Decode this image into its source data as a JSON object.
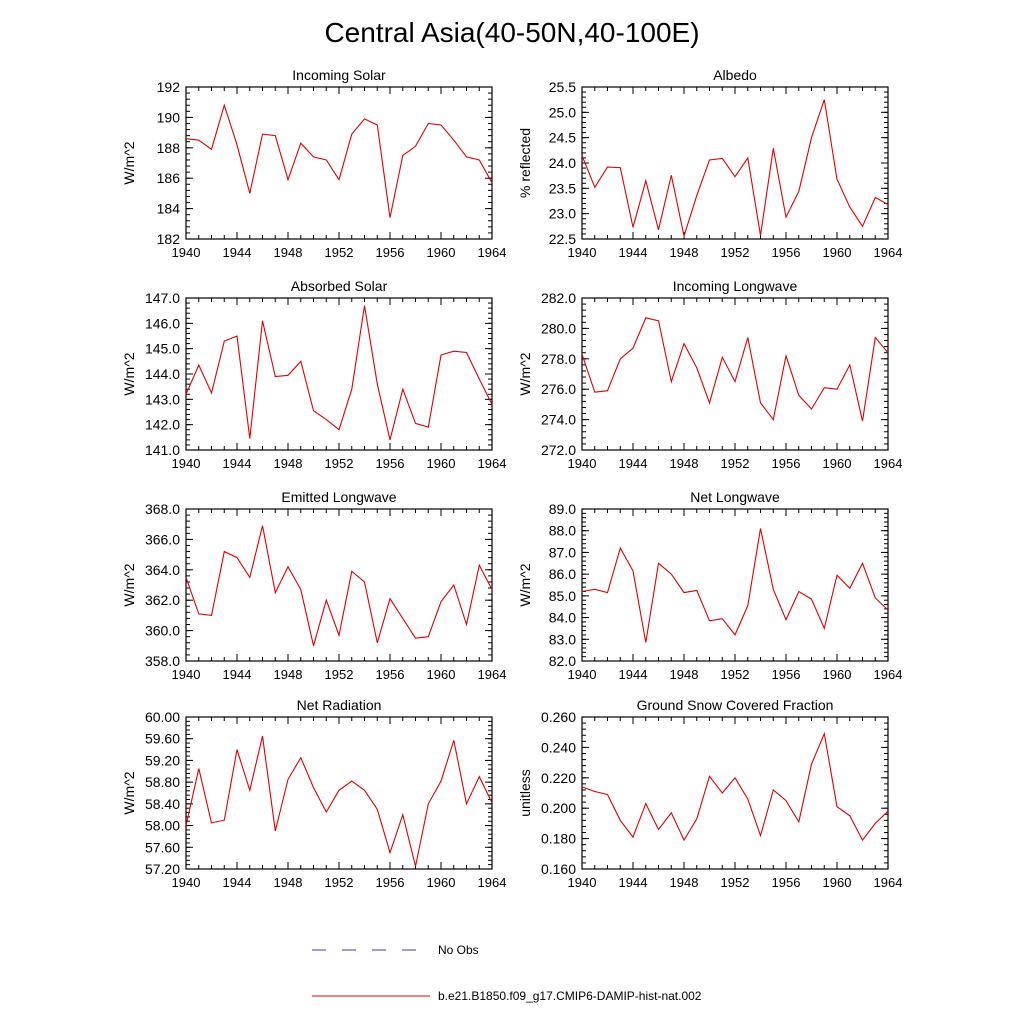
{
  "title": "Central Asia(40-50N,40-100E)",
  "legend": {
    "obs_label": "No Obs",
    "obs_color": "#3b3bb5",
    "model_label": "b.e21.B1850.f09_g17.CMIP6-DAMIP-hist-nat.002",
    "model_color": "#e00000"
  },
  "chart_data": [
    {
      "type": "line",
      "title": "Incoming Solar",
      "ylabel": "W/m^2",
      "x": [
        1940,
        1941,
        1942,
        1943,
        1944,
        1945,
        1946,
        1947,
        1948,
        1949,
        1950,
        1951,
        1952,
        1953,
        1954,
        1955,
        1956,
        1957,
        1958,
        1959,
        1960,
        1961,
        1962,
        1963,
        1964
      ],
      "xlim": [
        1940,
        1964
      ],
      "xticks": [
        "1940",
        "1944",
        "1948",
        "1952",
        "1956",
        "1960",
        "1964"
      ],
      "ylim": [
        182,
        192
      ],
      "yticks": [
        "182",
        "184",
        "186",
        "188",
        "190",
        "192"
      ],
      "series": [
        {
          "values": [
            188.6,
            188.5,
            187.9,
            190.8,
            188.2,
            185.0,
            188.9,
            188.8,
            185.9,
            188.3,
            187.4,
            187.2,
            185.9,
            188.9,
            189.9,
            189.5,
            183.4,
            187.5,
            188.1,
            189.6,
            189.5,
            188.5,
            187.4,
            187.2,
            185.7
          ]
        }
      ]
    },
    {
      "type": "line",
      "title": "Albedo",
      "ylabel": "% reflected",
      "x": [
        1940,
        1941,
        1942,
        1943,
        1944,
        1945,
        1946,
        1947,
        1948,
        1949,
        1950,
        1951,
        1952,
        1953,
        1954,
        1955,
        1956,
        1957,
        1958,
        1959,
        1960,
        1961,
        1962,
        1963,
        1964
      ],
      "xlim": [
        1940,
        1964
      ],
      "xticks": [
        "1940",
        "1944",
        "1948",
        "1952",
        "1956",
        "1960",
        "1964"
      ],
      "ylim": [
        22.5,
        25.5
      ],
      "yticks": [
        "22.5",
        "23.0",
        "23.5",
        "24.0",
        "24.5",
        "25.0",
        "25.5"
      ],
      "series": [
        {
          "values": [
            24.15,
            23.52,
            23.92,
            23.91,
            22.73,
            23.65,
            22.68,
            23.76,
            22.56,
            23.36,
            24.06,
            24.09,
            23.73,
            24.1,
            22.57,
            24.29,
            22.93,
            23.44,
            24.5,
            25.25,
            23.68,
            23.13,
            22.75,
            23.32,
            23.18
          ]
        }
      ]
    },
    {
      "type": "line",
      "title": "Absorbed Solar",
      "ylabel": "W/m^2",
      "x": [
        1940,
        1941,
        1942,
        1943,
        1944,
        1945,
        1946,
        1947,
        1948,
        1949,
        1950,
        1951,
        1952,
        1953,
        1954,
        1955,
        1956,
        1957,
        1958,
        1959,
        1960,
        1961,
        1962,
        1963,
        1964
      ],
      "xlim": [
        1940,
        1964
      ],
      "xticks": [
        "1940",
        "1944",
        "1948",
        "1952",
        "1956",
        "1960",
        "1964"
      ],
      "ylim": [
        141.0,
        147.0
      ],
      "yticks": [
        "141.0",
        "142.0",
        "143.0",
        "144.0",
        "145.0",
        "146.0",
        "147.0"
      ],
      "series": [
        {
          "values": [
            143.2,
            144.35,
            143.25,
            145.3,
            145.5,
            141.45,
            146.1,
            143.9,
            143.95,
            144.5,
            142.55,
            142.2,
            141.8,
            143.4,
            146.7,
            143.6,
            141.4,
            143.4,
            142.05,
            141.9,
            144.75,
            144.9,
            144.85,
            143.8,
            142.8
          ]
        }
      ]
    },
    {
      "type": "line",
      "title": "Incoming Longwave",
      "ylabel": "W/m^2",
      "x": [
        1940,
        1941,
        1942,
        1943,
        1944,
        1945,
        1946,
        1947,
        1948,
        1949,
        1950,
        1951,
        1952,
        1953,
        1954,
        1955,
        1956,
        1957,
        1958,
        1959,
        1960,
        1961,
        1962,
        1963,
        1964
      ],
      "xlim": [
        1940,
        1964
      ],
      "xticks": [
        "1940",
        "1944",
        "1948",
        "1952",
        "1956",
        "1960",
        "1964"
      ],
      "ylim": [
        272.0,
        282.0
      ],
      "yticks": [
        "272.0",
        "274.0",
        "276.0",
        "278.0",
        "280.0",
        "282.0"
      ],
      "series": [
        {
          "values": [
            278.3,
            275.8,
            275.9,
            278.0,
            278.7,
            280.7,
            280.5,
            276.5,
            279.0,
            277.4,
            275.1,
            278.1,
            276.5,
            279.4,
            275.1,
            274.0,
            278.2,
            275.6,
            274.7,
            276.1,
            276.0,
            277.6,
            273.9,
            279.4,
            278.4
          ]
        }
      ]
    },
    {
      "type": "line",
      "title": "Emitted Longwave",
      "ylabel": "W/m^2",
      "x": [
        1940,
        1941,
        1942,
        1943,
        1944,
        1945,
        1946,
        1947,
        1948,
        1949,
        1950,
        1951,
        1952,
        1953,
        1954,
        1955,
        1956,
        1957,
        1958,
        1959,
        1960,
        1961,
        1962,
        1963,
        1964
      ],
      "xlim": [
        1940,
        1964
      ],
      "xticks": [
        "1940",
        "1944",
        "1948",
        "1952",
        "1956",
        "1960",
        "1964"
      ],
      "ylim": [
        358.0,
        368.0
      ],
      "yticks": [
        "358.0",
        "360.0",
        "362.0",
        "364.0",
        "366.0",
        "368.0"
      ],
      "series": [
        {
          "values": [
            363.5,
            361.1,
            361.0,
            365.2,
            364.8,
            363.5,
            366.9,
            362.5,
            364.2,
            362.7,
            359.0,
            362.0,
            359.7,
            363.9,
            363.2,
            359.2,
            362.1,
            360.8,
            359.5,
            359.6,
            361.9,
            363.0,
            360.4,
            364.3,
            362.7
          ]
        }
      ]
    },
    {
      "type": "line",
      "title": "Net Longwave",
      "ylabel": "W/m^2",
      "x": [
        1940,
        1941,
        1942,
        1943,
        1944,
        1945,
        1946,
        1947,
        1948,
        1949,
        1950,
        1951,
        1952,
        1953,
        1954,
        1955,
        1956,
        1957,
        1958,
        1959,
        1960,
        1961,
        1962,
        1963,
        1964
      ],
      "xlim": [
        1940,
        1964
      ],
      "xticks": [
        "1940",
        "1944",
        "1948",
        "1952",
        "1956",
        "1960",
        "1964"
      ],
      "ylim": [
        82.0,
        89.0
      ],
      "yticks": [
        "82.0",
        "83.0",
        "84.0",
        "85.0",
        "86.0",
        "87.0",
        "88.0",
        "89.0"
      ],
      "series": [
        {
          "values": [
            85.2,
            85.3,
            85.15,
            87.2,
            86.15,
            82.85,
            86.5,
            86.0,
            85.15,
            85.25,
            83.85,
            83.95,
            83.2,
            84.55,
            88.1,
            85.3,
            83.9,
            85.2,
            84.85,
            83.5,
            85.95,
            85.35,
            86.5,
            84.9,
            84.35
          ]
        }
      ]
    },
    {
      "type": "line",
      "title": "Net Radiation",
      "ylabel": "W/m^2",
      "x": [
        1940,
        1941,
        1942,
        1943,
        1944,
        1945,
        1946,
        1947,
        1948,
        1949,
        1950,
        1951,
        1952,
        1953,
        1954,
        1955,
        1956,
        1957,
        1958,
        1959,
        1960,
        1961,
        1962,
        1963,
        1964
      ],
      "xlim": [
        1940,
        1964
      ],
      "xticks": [
        "1940",
        "1944",
        "1948",
        "1952",
        "1956",
        "1960",
        "1964"
      ],
      "ylim": [
        57.2,
        60.0
      ],
      "yticks": [
        "57.20",
        "57.60",
        "58.00",
        "58.40",
        "58.80",
        "59.20",
        "59.60",
        "60.00"
      ],
      "series": [
        {
          "values": [
            58.0,
            59.05,
            58.05,
            58.1,
            59.4,
            58.65,
            59.65,
            57.9,
            58.85,
            59.25,
            58.7,
            58.25,
            58.65,
            58.82,
            58.65,
            58.3,
            57.5,
            58.2,
            57.25,
            58.4,
            58.82,
            59.57,
            58.4,
            58.9,
            58.42
          ]
        }
      ]
    },
    {
      "type": "line",
      "title": "Ground Snow Covered Fraction",
      "ylabel": "unitless",
      "x": [
        1940,
        1941,
        1942,
        1943,
        1944,
        1945,
        1946,
        1947,
        1948,
        1949,
        1950,
        1951,
        1952,
        1953,
        1954,
        1955,
        1956,
        1957,
        1958,
        1959,
        1960,
        1961,
        1962,
        1963,
        1964
      ],
      "xlim": [
        1940,
        1964
      ],
      "xticks": [
        "1940",
        "1944",
        "1948",
        "1952",
        "1956",
        "1960",
        "1964"
      ],
      "ylim": [
        0.16,
        0.26
      ],
      "yticks": [
        "0.160",
        "0.180",
        "0.200",
        "0.220",
        "0.240",
        "0.260"
      ],
      "series": [
        {
          "values": [
            0.214,
            0.211,
            0.209,
            0.192,
            0.181,
            0.203,
            0.186,
            0.197,
            0.179,
            0.193,
            0.221,
            0.21,
            0.22,
            0.206,
            0.182,
            0.212,
            0.205,
            0.191,
            0.229,
            0.249,
            0.201,
            0.195,
            0.179,
            0.19,
            0.198
          ]
        }
      ]
    }
  ]
}
